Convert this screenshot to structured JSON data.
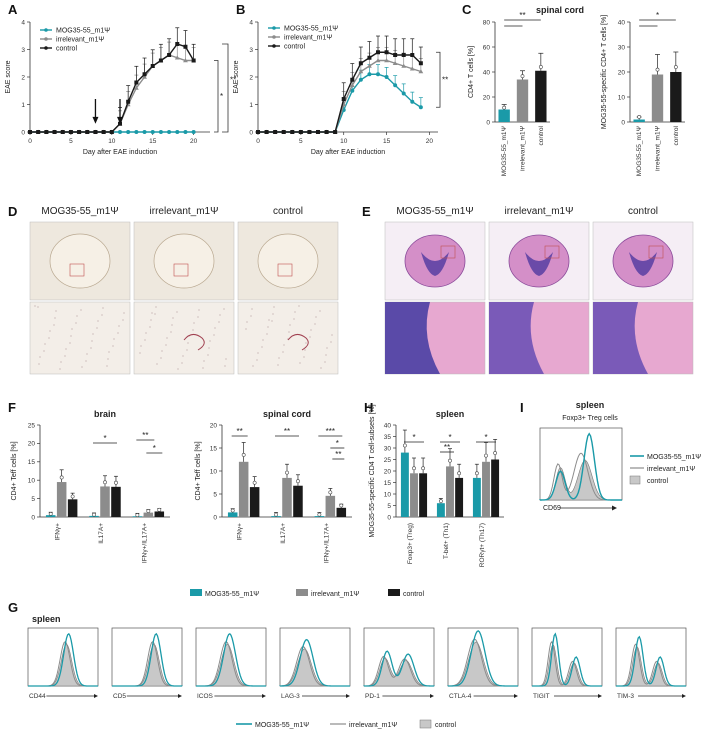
{
  "panel_letters": {
    "a": "A",
    "b": "B",
    "c": "C",
    "d": "D",
    "e": "E",
    "f": "F",
    "g": "G",
    "h": "H",
    "i": "I"
  },
  "colors": {
    "mog": "#1a9aa8",
    "irr": "#8c8c8c",
    "ctrl": "#1a1a1a",
    "fill_ctrl": "#c8c8c8"
  },
  "chart_data": [
    {
      "id": "A",
      "type": "line",
      "xlabel": "Day after EAE induction",
      "ylabel": "EAE score",
      "xlim": [
        0,
        22
      ],
      "ylim": [
        0,
        4
      ],
      "xticks": [
        0,
        5,
        10,
        15,
        20
      ],
      "yticks": [
        0,
        1,
        2,
        3,
        4
      ],
      "arrows_at_days": [
        8,
        11
      ],
      "significance": [
        "*",
        "**"
      ],
      "x": [
        0,
        1,
        2,
        3,
        4,
        5,
        6,
        7,
        8,
        9,
        10,
        11,
        12,
        13,
        14,
        15,
        16,
        17,
        18,
        19,
        20
      ],
      "series": [
        {
          "name": "MOG35-55_m1Ψ",
          "color": "#1a9aa8",
          "values": [
            0,
            0,
            0,
            0,
            0,
            0,
            0,
            0,
            0,
            0,
            0,
            0,
            0,
            0,
            0,
            0,
            0,
            0,
            0,
            0,
            0
          ]
        },
        {
          "name": "irrelevant_m1Ψ",
          "color": "#8c8c8c",
          "values": [
            0,
            0,
            0,
            0,
            0,
            0,
            0,
            0,
            0,
            0,
            0,
            0.3,
            1.0,
            1.6,
            2.0,
            2.4,
            2.6,
            2.8,
            2.7,
            2.6,
            2.6
          ]
        },
        {
          "name": "control",
          "color": "#1a1a1a",
          "values": [
            0,
            0,
            0,
            0,
            0,
            0,
            0,
            0,
            0,
            0,
            0,
            0.3,
            1.1,
            1.8,
            2.1,
            2.4,
            2.6,
            2.8,
            3.2,
            3.1,
            2.6
          ]
        }
      ]
    },
    {
      "id": "B",
      "type": "line",
      "xlabel": "Day after EAE induction",
      "ylabel": "EAE score",
      "xlim": [
        0,
        21
      ],
      "ylim": [
        0,
        4
      ],
      "xticks": [
        0,
        5,
        10,
        15,
        20
      ],
      "yticks": [
        0,
        1,
        2,
        3,
        4
      ],
      "significance": [
        "**"
      ],
      "x": [
        0,
        1,
        2,
        3,
        4,
        5,
        6,
        7,
        8,
        9,
        10,
        11,
        12,
        13,
        14,
        15,
        16,
        17,
        18,
        19
      ],
      "series": [
        {
          "name": "MOG35-55_m1Ψ",
          "color": "#1a9aa8",
          "values": [
            0,
            0,
            0,
            0,
            0,
            0,
            0,
            0,
            0,
            0,
            0.8,
            1.5,
            1.9,
            2.1,
            2.1,
            2.0,
            1.7,
            1.4,
            1.1,
            0.9
          ]
        },
        {
          "name": "irrelevant_m1Ψ",
          "color": "#8c8c8c",
          "values": [
            0,
            0,
            0,
            0,
            0,
            0,
            0,
            0,
            0,
            0,
            1.0,
            1.7,
            2.2,
            2.4,
            2.6,
            2.6,
            2.5,
            2.4,
            2.3,
            2.2
          ]
        },
        {
          "name": "control",
          "color": "#1a1a1a",
          "values": [
            0,
            0,
            0,
            0,
            0,
            0,
            0,
            0,
            0,
            0,
            1.2,
            1.9,
            2.5,
            2.7,
            2.9,
            2.9,
            2.8,
            2.8,
            2.8,
            2.5
          ]
        }
      ]
    },
    {
      "id": "C1",
      "type": "bar",
      "ylabel": "CD4+ T cells [%]",
      "ylim": [
        0,
        80
      ],
      "yticks": [
        0,
        20,
        40,
        60,
        80
      ],
      "categories": [
        "MOG35-55_m1Ψ",
        "irrelevant_m1Ψ",
        "control"
      ],
      "values": [
        10,
        34,
        41
      ],
      "errors": [
        4,
        7,
        14
      ],
      "significance": [
        "**"
      ]
    },
    {
      "id": "C2",
      "type": "bar",
      "ylabel": "MOG35-55-specific CD4+ T cells [%]",
      "ylim": [
        0,
        40
      ],
      "yticks": [
        0,
        10,
        20,
        30,
        40
      ],
      "categories": [
        "MOG35-55_m1Ψ",
        "irrelevant_m1Ψ",
        "control"
      ],
      "values": [
        1,
        19,
        20
      ],
      "errors": [
        1,
        8,
        8
      ],
      "significance": [
        "*"
      ]
    },
    {
      "id": "F1",
      "type": "bar",
      "title": "brain",
      "ylabel": "CD4+ Teff cells [%]",
      "ylim": [
        0,
        25
      ],
      "yticks": [
        0,
        5,
        10,
        15,
        20,
        25
      ],
      "categories": [
        "IFNγ+",
        "IL17A+",
        "IFNγ+/IL17A+"
      ],
      "series": [
        {
          "name": "MOG35-55_m1Ψ",
          "values": [
            0.5,
            0.3,
            0.2
          ]
        },
        {
          "name": "irrelevant_m1Ψ",
          "values": [
            9.5,
            8.3,
            1.2
          ]
        },
        {
          "name": "control",
          "values": [
            4.8,
            8.2,
            1.5
          ]
        }
      ],
      "significance": [
        "*",
        "**",
        "*"
      ]
    },
    {
      "id": "F2",
      "type": "bar",
      "title": "spinal cord",
      "ylabel": "CD4+ Teff cells [%]",
      "ylim": [
        0,
        20
      ],
      "yticks": [
        0,
        5,
        10,
        15,
        20
      ],
      "categories": [
        "IFNγ+",
        "IL17A+",
        "IFNγ+/IL17A+"
      ],
      "series": [
        {
          "name": "MOG35-55_m1Ψ",
          "values": [
            1.0,
            0.2,
            0.2
          ]
        },
        {
          "name": "irrelevant_m1Ψ",
          "values": [
            12.0,
            8.5,
            4.6
          ]
        },
        {
          "name": "control",
          "values": [
            6.5,
            6.8,
            2.0
          ]
        }
      ],
      "significance": [
        "**",
        "**",
        "***",
        "*",
        "**"
      ]
    },
    {
      "id": "H",
      "type": "bar",
      "title": "spleen",
      "ylabel": "MOG35-55-specific CD4 T cell-subsets [%]",
      "ylim": [
        0,
        40
      ],
      "yticks": [
        0,
        5,
        10,
        15,
        20,
        25,
        30,
        35,
        40
      ],
      "categories": [
        "Foxp3+ (Treg)",
        "T-bet+ (Th1)",
        "RORγt+ (Th17)"
      ],
      "series": [
        {
          "name": "MOG35-55_m1Ψ",
          "values": [
            28,
            6,
            17
          ]
        },
        {
          "name": "irrelevant_m1Ψ",
          "values": [
            19,
            22,
            24
          ]
        },
        {
          "name": "control",
          "values": [
            19,
            17,
            25
          ]
        }
      ],
      "significance": [
        "*",
        "*",
        "**",
        "*"
      ]
    }
  ],
  "labels": {
    "a_legend": [
      "MOG35-55_m1Ψ",
      "irrelevant_m1Ψ",
      "control"
    ],
    "c_title": "spinal cord",
    "d_headers": [
      "MOG35-55_m1Ψ",
      "irrelevant_m1Ψ",
      "control"
    ],
    "e_headers": [
      "MOG35-55_m1Ψ",
      "irrelevant_m1Ψ",
      "control"
    ],
    "i_title": "spleen",
    "i_subtitle": "Foxp3+ Treg cells",
    "i_xlabel": "CD69",
    "i_legend": [
      "MOG35-55_m1Ψ",
      "irrelevant_m1Ψ",
      "control"
    ],
    "fh_legend": [
      "MOG35-55_m1Ψ",
      "irrelevant_m1Ψ",
      "control"
    ],
    "g_title": "spleen",
    "g_markers": [
      "CD44",
      "CD5",
      "ICOS",
      "LAG-3",
      "PD-1",
      "CTLA-4",
      "TIGIT",
      "TIM-3"
    ],
    "g_legend": [
      "MOG35-55_m1Ψ",
      "irrelevant_m1Ψ",
      "control"
    ]
  }
}
